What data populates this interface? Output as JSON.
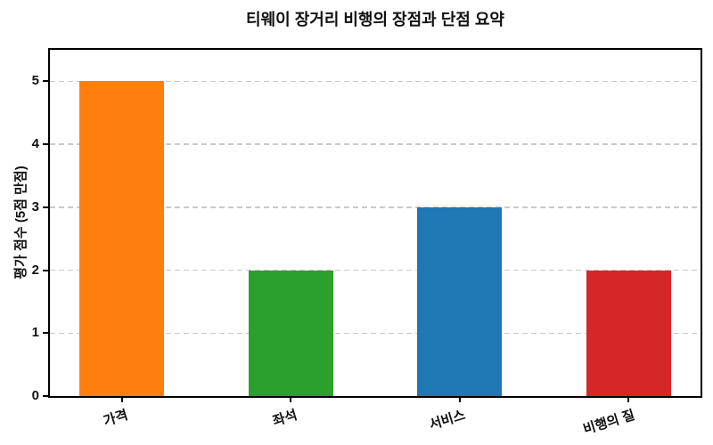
{
  "chart_data": {
    "type": "bar",
    "title": "티웨이 장거리 비행의 장점과 단점 요약",
    "ylabel": "평가 점수 (5점 만점)",
    "xlabel": "",
    "categories": [
      "가격",
      "좌석",
      "서비스",
      "비행의 질"
    ],
    "values": [
      5,
      2,
      3,
      2
    ],
    "bar_colors": [
      "#ff7f0e",
      "#2ca02c",
      "#1f77b4",
      "#d62728"
    ],
    "yticks": [
      0,
      1,
      2,
      3,
      4,
      5
    ],
    "ylim": [
      0,
      5.5
    ],
    "grid": "horizontal-dashed",
    "grid_color": "#c9c9c9",
    "spine_color": "#000000",
    "legend": "none",
    "xtick_rotation_deg": -17
  }
}
